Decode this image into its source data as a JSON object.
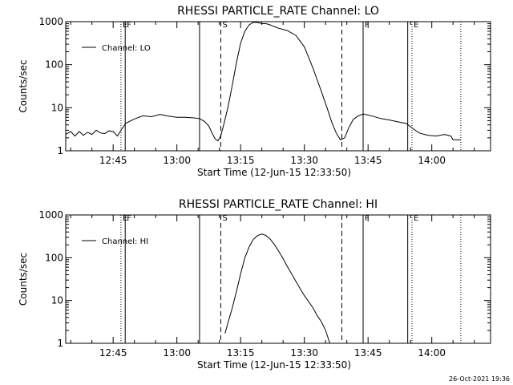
{
  "stamp": "26-Oct-2021 19:36",
  "chart_data": [
    {
      "type": "line",
      "title": "RHESSI PARTICLE_RATE Channel: LO",
      "xlabel": "Start Time (12-Jun-15 12:33:50)",
      "ylabel": "Counts/sec",
      "yscale": "log",
      "ylim": [
        1,
        1000
      ],
      "xlim": [
        "12:33:50",
        "14:13:50"
      ],
      "yticks": [
        "1",
        "10",
        "100",
        "1000"
      ],
      "xticks": [
        "12:45",
        "13:00",
        "13:15",
        "13:30",
        "13:45",
        "14:00"
      ],
      "legend": "Channel: LO",
      "legend_position": "top-left",
      "markers": [
        {
          "time": "12:46:50",
          "style": "dotted",
          "label": "E"
        },
        {
          "time": "12:47:50",
          "style": "solid",
          "label": "F"
        },
        {
          "time": "13:05:20",
          "style": "solid",
          "label": ""
        },
        {
          "time": "13:10:20",
          "style": "dashed",
          "label": "S"
        },
        {
          "time": "13:38:50",
          "style": "dashed",
          "label": ""
        },
        {
          "time": "13:43:50",
          "style": "solid",
          "label": "F"
        },
        {
          "time": "13:54:20",
          "style": "solid",
          "label": ""
        },
        {
          "time": "13:55:20",
          "style": "dotted",
          "label": "E"
        },
        {
          "time": "14:06:50",
          "style": "dotted",
          "label": ""
        }
      ],
      "series": [
        {
          "name": "Channel: LO",
          "x": [
            "12:33:50",
            "12:35:00",
            "12:36:00",
            "12:37:00",
            "12:38:00",
            "12:39:00",
            "12:40:00",
            "12:41:00",
            "12:42:00",
            "12:43:00",
            "12:44:00",
            "12:45:00",
            "12:46:00",
            "12:46:50",
            "12:48:00",
            "12:50:00",
            "12:52:00",
            "12:54:00",
            "12:56:00",
            "12:58:00",
            "13:00:00",
            "13:02:00",
            "13:04:00",
            "13:05:20",
            "13:06:30",
            "13:07:30",
            "13:08:20",
            "13:09:00",
            "13:09:40",
            "13:10:20",
            "13:11:00",
            "13:12:00",
            "13:13:00",
            "13:14:00",
            "13:15:00",
            "13:16:00",
            "13:17:00",
            "13:18:00",
            "13:19:00",
            "13:20:00",
            "13:21:00",
            "13:22:00",
            "13:23:00",
            "13:24:00",
            "13:26:00",
            "13:28:00",
            "13:30:00",
            "13:32:00",
            "13:34:00",
            "13:35:30",
            "13:36:30",
            "13:37:30",
            "13:38:30",
            "13:39:30",
            "13:40:30",
            "13:41:30",
            "13:42:30",
            "13:43:50",
            "13:46:00",
            "13:48:00",
            "13:50:00",
            "13:52:00",
            "13:54:00",
            "13:55:20",
            "13:57:00",
            "13:59:00",
            "14:01:00",
            "14:03:00",
            "14:04:30",
            "14:05:00",
            "14:06:50"
          ],
          "values": [
            2.4,
            2.8,
            2.2,
            2.8,
            2.3,
            2.7,
            2.4,
            3.0,
            2.6,
            2.5,
            2.9,
            2.8,
            2.2,
            3.0,
            4.4,
            5.5,
            6.5,
            6.2,
            7.0,
            6.4,
            6.0,
            6.0,
            5.8,
            5.6,
            4.8,
            3.8,
            2.5,
            1.9,
            1.7,
            2.2,
            4.0,
            10,
            32,
            110,
            320,
            600,
            840,
            970,
            960,
            900,
            900,
            840,
            760,
            700,
            620,
            480,
            260,
            85,
            24,
            9,
            4.5,
            2.6,
            1.8,
            2.0,
            3.5,
            5.3,
            6.3,
            7.2,
            6.4,
            5.6,
            5.2,
            4.7,
            4.3,
            3.4,
            2.6,
            2.3,
            2.2,
            2.4,
            2.2,
            1.8,
            1.8
          ]
        }
      ]
    },
    {
      "type": "line",
      "title": "RHESSI PARTICLE_RATE Channel: HI",
      "xlabel": "Start Time (12-Jun-15 12:33:50)",
      "ylabel": "Counts/sec",
      "yscale": "log",
      "ylim": [
        1,
        1000
      ],
      "xlim": [
        "12:33:50",
        "14:13:50"
      ],
      "yticks": [
        "1",
        "10",
        "100",
        "1000"
      ],
      "xticks": [
        "12:45",
        "13:00",
        "13:15",
        "13:30",
        "13:45",
        "14:00"
      ],
      "legend": "Channel: HI",
      "legend_position": "top-left",
      "markers": [
        {
          "time": "12:46:50",
          "style": "dotted",
          "label": "E"
        },
        {
          "time": "12:47:50",
          "style": "solid",
          "label": "F"
        },
        {
          "time": "13:05:20",
          "style": "solid",
          "label": ""
        },
        {
          "time": "13:10:20",
          "style": "dashed",
          "label": "S"
        },
        {
          "time": "13:38:50",
          "style": "dashed",
          "label": ""
        },
        {
          "time": "13:43:50",
          "style": "solid",
          "label": "F"
        },
        {
          "time": "13:54:20",
          "style": "solid",
          "label": ""
        },
        {
          "time": "13:55:20",
          "style": "dotted",
          "label": "E"
        },
        {
          "time": "14:06:50",
          "style": "dotted",
          "label": ""
        }
      ],
      "series": [
        {
          "name": "Channel: HI",
          "x": [
            "13:11:20",
            "13:12:00",
            "13:13:00",
            "13:14:00",
            "13:15:00",
            "13:16:00",
            "13:17:00",
            "13:18:00",
            "13:19:00",
            "13:20:00",
            "13:21:00",
            "13:22:00",
            "13:23:00",
            "13:24:00",
            "13:25:00",
            "13:26:00",
            "13:27:00",
            "13:28:00",
            "13:29:00",
            "13:30:00",
            "13:31:00",
            "13:32:00",
            "13:33:00",
            "13:34:00",
            "13:35:00",
            "13:36:00"
          ],
          "values": [
            1.7,
            3.0,
            6.5,
            16,
            42,
            100,
            180,
            270,
            330,
            360,
            330,
            270,
            200,
            140,
            95,
            62,
            42,
            28,
            19,
            13,
            9.5,
            6.8,
            4.5,
            3.2,
            2.0,
            1.0
          ]
        }
      ]
    }
  ]
}
